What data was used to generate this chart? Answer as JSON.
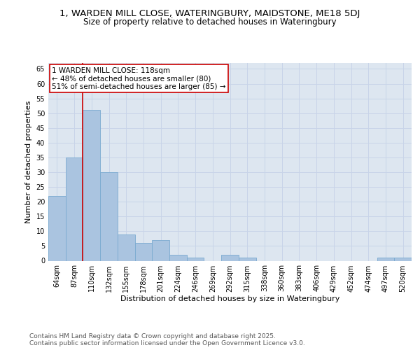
{
  "title": "1, WARDEN MILL CLOSE, WATERINGBURY, MAIDSTONE, ME18 5DJ",
  "subtitle": "Size of property relative to detached houses in Wateringbury",
  "xlabel": "Distribution of detached houses by size in Wateringbury",
  "ylabel": "Number of detached properties",
  "categories": [
    "64sqm",
    "87sqm",
    "110sqm",
    "132sqm",
    "155sqm",
    "178sqm",
    "201sqm",
    "224sqm",
    "246sqm",
    "269sqm",
    "292sqm",
    "315sqm",
    "338sqm",
    "360sqm",
    "383sqm",
    "406sqm",
    "429sqm",
    "452sqm",
    "474sqm",
    "497sqm",
    "520sqm"
  ],
  "values": [
    22,
    35,
    51,
    30,
    9,
    6,
    7,
    2,
    1,
    0,
    2,
    1,
    0,
    0,
    0,
    0,
    0,
    0,
    0,
    1,
    1
  ],
  "bar_color": "#aac4e0",
  "bar_edge_color": "#7aaad0",
  "property_line_color": "#cc0000",
  "property_line_index": 2,
  "annotation_text": "1 WARDEN MILL CLOSE: 118sqm\n← 48% of detached houses are smaller (80)\n51% of semi-detached houses are larger (85) →",
  "annotation_box_facecolor": "#ffffff",
  "annotation_box_edgecolor": "#cc0000",
  "ylim": [
    0,
    67
  ],
  "yticks": [
    0,
    5,
    10,
    15,
    20,
    25,
    30,
    35,
    40,
    45,
    50,
    55,
    60,
    65
  ],
  "grid_color": "#c8d4e8",
  "bg_color": "#dde6f0",
  "fig_facecolor": "#ffffff",
  "title_fontsize": 9.5,
  "subtitle_fontsize": 8.5,
  "axis_label_fontsize": 8,
  "tick_fontsize": 7,
  "annotation_fontsize": 7.5,
  "footer_fontsize": 6.5,
  "footer_text": "Contains HM Land Registry data © Crown copyright and database right 2025.\nContains public sector information licensed under the Open Government Licence v3.0."
}
